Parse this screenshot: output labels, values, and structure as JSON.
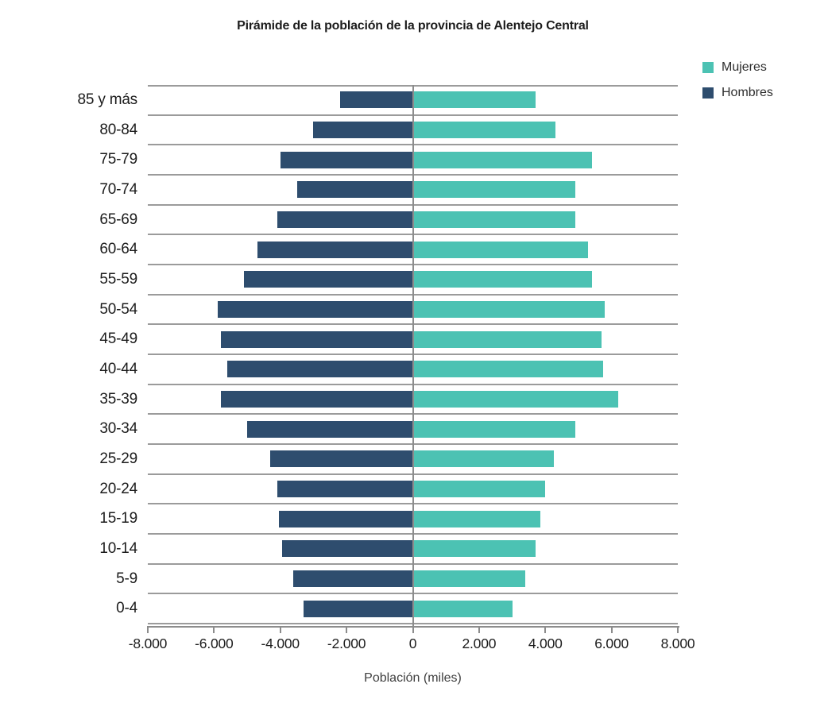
{
  "colors": {
    "mujeres_teal": "#4cc2b3",
    "hombres_navy": "#2e4d6e",
    "gridline": "#9b9b9b",
    "axis_line": "#8c8c8c",
    "title_text": "#1c1c1c",
    "label_text": "#1c1c1c",
    "axis_title_text": "#3f3f3f"
  },
  "chart_data": {
    "type": "bar",
    "orientation": "horizontal-population-pyramid",
    "title": "Pirámide de la población de la provincia de Alentejo Central",
    "xlabel": "Población (miles)",
    "ylabel": "",
    "xlim": [
      -8000,
      8000
    ],
    "grid": "horizontal row separators only, plus vertical zero line",
    "legend_position": "top-right",
    "categories": [
      "85 y más",
      "80-84",
      "75-79",
      "70-74",
      "65-69",
      "60-64",
      "55-59",
      "50-54",
      "45-49",
      "40-44",
      "35-39",
      "30-34",
      "25-29",
      "20-24",
      "15-19",
      "10-14",
      "5-9",
      "0-4"
    ],
    "series": [
      {
        "name": "Mujeres",
        "color": "#4cc2b3",
        "values": [
          3700,
          4300,
          5400,
          4900,
          4900,
          5300,
          5400,
          5800,
          5700,
          5750,
          6200,
          4900,
          4250,
          4000,
          3850,
          3700,
          3400,
          3000
        ]
      },
      {
        "name": "Hombres",
        "color": "#2e4d6e",
        "values": [
          -2200,
          -3000,
          -4000,
          -3500,
          -4100,
          -4700,
          -5100,
          -5900,
          -5800,
          -5600,
          -5800,
          -5000,
          -4300,
          -4100,
          -4050,
          -3950,
          -3600,
          -3300
        ]
      }
    ],
    "xticks": [
      {
        "value": -8000,
        "label": "-8.000"
      },
      {
        "value": -6000,
        "label": "-6.000"
      },
      {
        "value": -4000,
        "label": "-4.000"
      },
      {
        "value": -2000,
        "label": "-2.000"
      },
      {
        "value": 0,
        "label": "0"
      },
      {
        "value": 2000,
        "label": "2.000"
      },
      {
        "value": 4000,
        "label": "4.000"
      },
      {
        "value": 6000,
        "label": "6.000"
      },
      {
        "value": 8000,
        "label": "8.000"
      }
    ]
  }
}
